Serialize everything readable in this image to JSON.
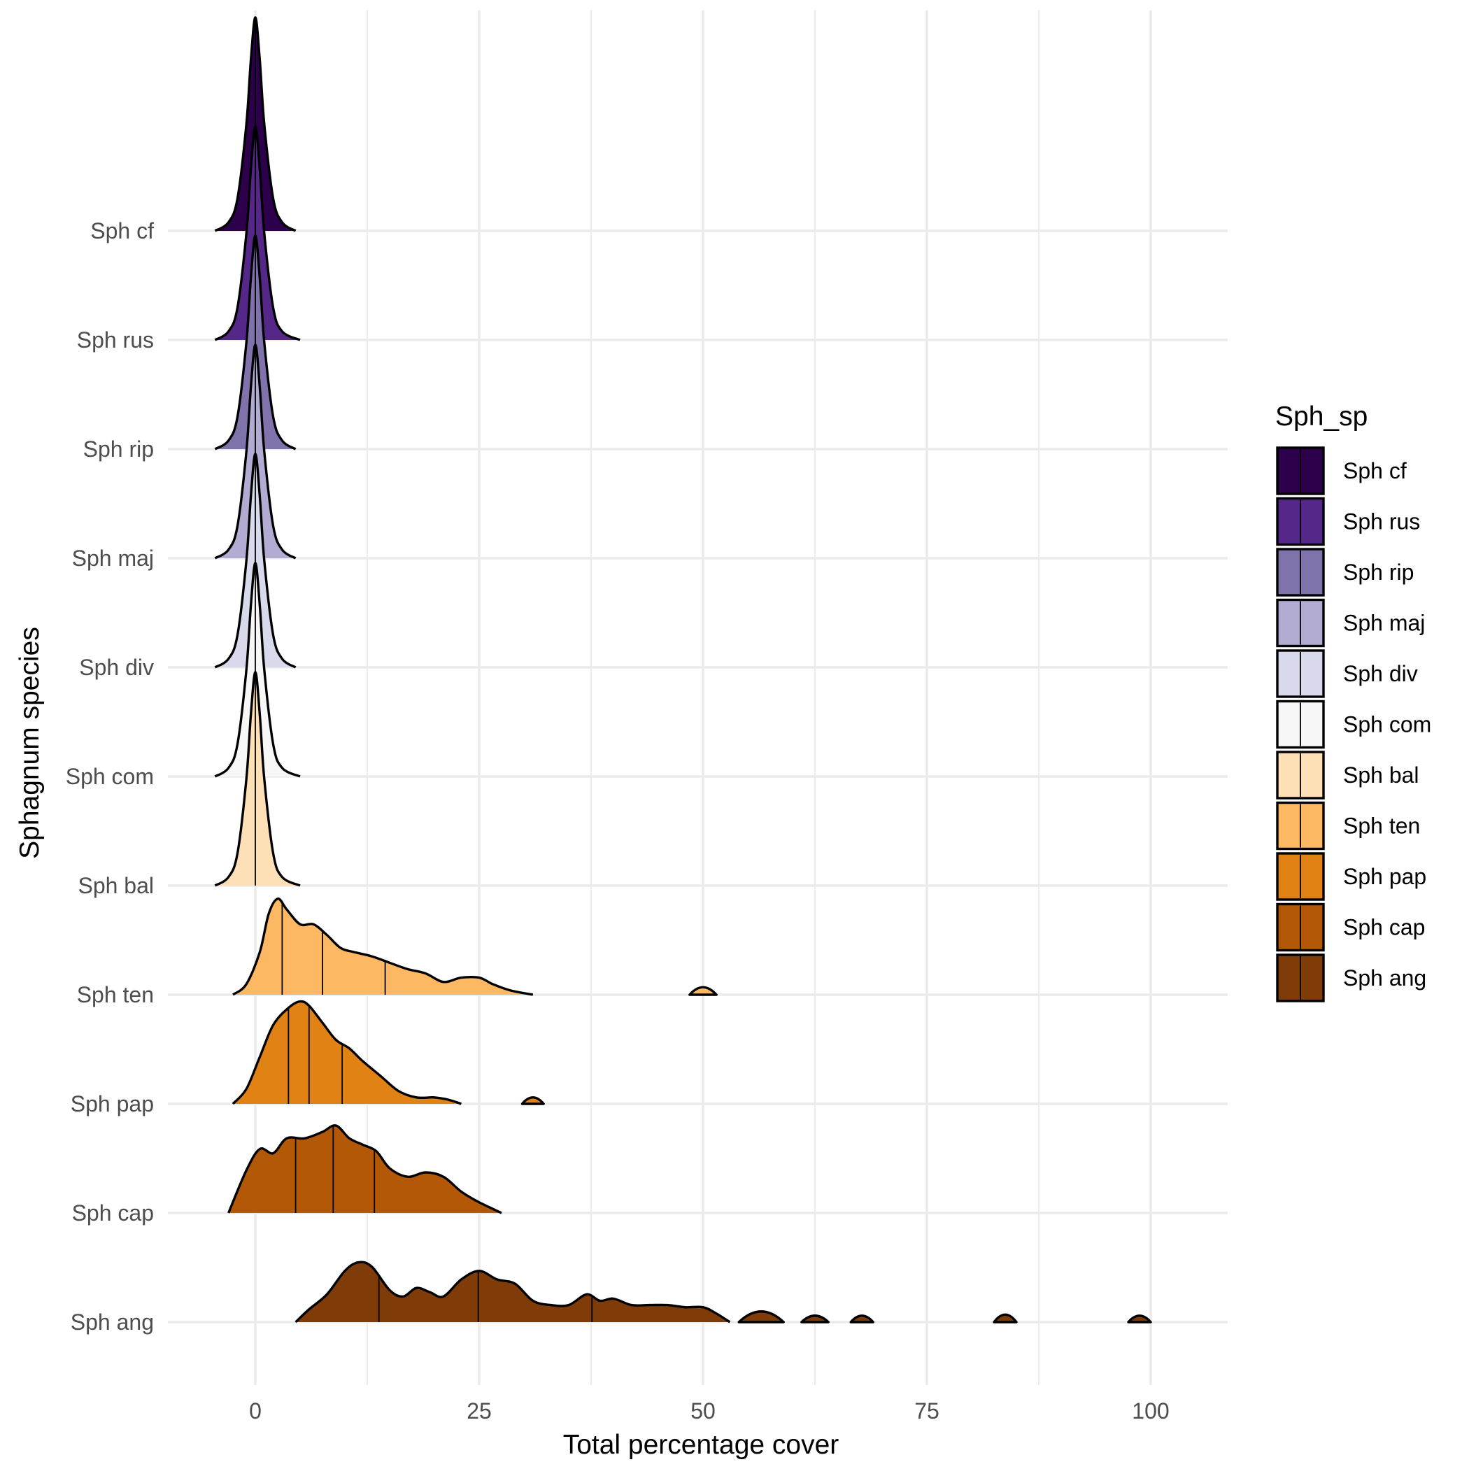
{
  "chart_data": {
    "type": "ridgeline",
    "title": "",
    "xlabel": "Total percentage cover",
    "ylabel": "Sphagnum species",
    "xlim": [
      -9.5,
      109.5
    ],
    "x_ticks": [
      0,
      25,
      50,
      75,
      100
    ],
    "x_minor_ticks": [
      12.5,
      37.5,
      62.5,
      87.5
    ],
    "grid": true,
    "legend": {
      "title": "Sph_sp",
      "position": "right"
    },
    "series": [
      {
        "name": "Sph cf",
        "color": "#2d004b",
        "quantiles": [
          0
        ],
        "density": [
          [
            -4.5,
            0
          ],
          [
            -3,
            0.04
          ],
          [
            -2,
            0.15
          ],
          [
            -1,
            0.5
          ],
          [
            -0.5,
            0.8
          ],
          [
            0,
            1
          ],
          [
            0.5,
            0.8
          ],
          [
            1,
            0.5
          ],
          [
            2,
            0.15
          ],
          [
            3,
            0.04
          ],
          [
            4.5,
            0
          ]
        ]
      },
      {
        "name": "Sph rus",
        "color": "#542788",
        "quantiles": [
          0
        ],
        "density": [
          [
            -4.5,
            0
          ],
          [
            -3,
            0.04
          ],
          [
            -2,
            0.15
          ],
          [
            -1,
            0.5
          ],
          [
            -0.5,
            0.8
          ],
          [
            0,
            1
          ],
          [
            0.5,
            0.8
          ],
          [
            1,
            0.5
          ],
          [
            2,
            0.15
          ],
          [
            3,
            0.04
          ],
          [
            5,
            0
          ]
        ]
      },
      {
        "name": "Sph rip",
        "color": "#8073ac",
        "quantiles": [
          0
        ],
        "density": [
          [
            -4.5,
            0
          ],
          [
            -3,
            0.04
          ],
          [
            -2,
            0.15
          ],
          [
            -1,
            0.5
          ],
          [
            -0.5,
            0.8
          ],
          [
            0,
            1
          ],
          [
            0.5,
            0.8
          ],
          [
            1,
            0.5
          ],
          [
            2,
            0.15
          ],
          [
            3,
            0.04
          ],
          [
            4.5,
            0
          ]
        ]
      },
      {
        "name": "Sph maj",
        "color": "#b2abd2",
        "quantiles": [
          0
        ],
        "density": [
          [
            -4.5,
            0
          ],
          [
            -3,
            0.04
          ],
          [
            -2,
            0.15
          ],
          [
            -1,
            0.5
          ],
          [
            -0.5,
            0.8
          ],
          [
            0,
            1
          ],
          [
            0.5,
            0.8
          ],
          [
            1,
            0.5
          ],
          [
            2,
            0.15
          ],
          [
            3,
            0.04
          ],
          [
            4.5,
            0
          ]
        ]
      },
      {
        "name": "Sph div",
        "color": "#d8daeb",
        "quantiles": [
          0
        ],
        "density": [
          [
            -4.5,
            0
          ],
          [
            -3,
            0.04
          ],
          [
            -2,
            0.15
          ],
          [
            -1,
            0.5
          ],
          [
            -0.5,
            0.8
          ],
          [
            0,
            1
          ],
          [
            0.5,
            0.8
          ],
          [
            1,
            0.5
          ],
          [
            2,
            0.15
          ],
          [
            3,
            0.04
          ],
          [
            4.5,
            0
          ]
        ]
      },
      {
        "name": "Sph com",
        "color": "#f7f7f7",
        "quantiles": [
          0
        ],
        "density": [
          [
            -4.5,
            0
          ],
          [
            -3,
            0.04
          ],
          [
            -2,
            0.15
          ],
          [
            -1,
            0.5
          ],
          [
            -0.5,
            0.8
          ],
          [
            0,
            1
          ],
          [
            0.5,
            0.8
          ],
          [
            1,
            0.5
          ],
          [
            2,
            0.15
          ],
          [
            3,
            0.04
          ],
          [
            5,
            0
          ]
        ]
      },
      {
        "name": "Sph bal",
        "color": "#fee0b6",
        "quantiles": [
          0
        ],
        "density": [
          [
            -4.5,
            0
          ],
          [
            -3,
            0.04
          ],
          [
            -2,
            0.15
          ],
          [
            -1,
            0.5
          ],
          [
            -0.5,
            0.8
          ],
          [
            0,
            1
          ],
          [
            0.5,
            0.8
          ],
          [
            1,
            0.5
          ],
          [
            2,
            0.15
          ],
          [
            3,
            0.04
          ],
          [
            5,
            0
          ]
        ]
      },
      {
        "name": "Sph ten",
        "color": "#fdb863",
        "quantiles": [
          3,
          7.5,
          14.5
        ],
        "density": [
          [
            -2.5,
            0
          ],
          [
            -1,
            0.05
          ],
          [
            0.5,
            0.2
          ],
          [
            1.5,
            0.38
          ],
          [
            2.5,
            0.45
          ],
          [
            3.5,
            0.4
          ],
          [
            5,
            0.33
          ],
          [
            6.5,
            0.33
          ],
          [
            8,
            0.28
          ],
          [
            9.5,
            0.22
          ],
          [
            11,
            0.2
          ],
          [
            13,
            0.18
          ],
          [
            15,
            0.15
          ],
          [
            17,
            0.12
          ],
          [
            19,
            0.1
          ],
          [
            21,
            0.06
          ],
          [
            23,
            0.08
          ],
          [
            25,
            0.08
          ],
          [
            26.5,
            0.05
          ],
          [
            28.5,
            0.02
          ],
          [
            31,
            0
          ]
        ]
      },
      {
        "name": "Sph pap",
        "color": "#e08214",
        "quantiles": [
          3.7,
          6,
          9.7
        ],
        "density": [
          [
            -2.5,
            0
          ],
          [
            -1,
            0.07
          ],
          [
            0.5,
            0.22
          ],
          [
            2,
            0.37
          ],
          [
            3.7,
            0.45
          ],
          [
            5,
            0.48
          ],
          [
            6,
            0.46
          ],
          [
            7.5,
            0.38
          ],
          [
            9,
            0.3
          ],
          [
            10.5,
            0.26
          ],
          [
            12,
            0.2
          ],
          [
            14,
            0.13
          ],
          [
            16,
            0.06
          ],
          [
            18,
            0.03
          ],
          [
            20,
            0.03
          ],
          [
            21.5,
            0.02
          ],
          [
            23,
            0
          ]
        ]
      },
      {
        "name": "Sph cap",
        "color": "#b35806",
        "quantiles": [
          4.5,
          8.7,
          13.3
        ],
        "density": [
          [
            -3,
            0
          ],
          [
            -1,
            0.2
          ],
          [
            0.5,
            0.3
          ],
          [
            2,
            0.28
          ],
          [
            3.5,
            0.35
          ],
          [
            5.5,
            0.35
          ],
          [
            7.5,
            0.38
          ],
          [
            9,
            0.41
          ],
          [
            10.5,
            0.35
          ],
          [
            12,
            0.32
          ],
          [
            13.5,
            0.29
          ],
          [
            15,
            0.21
          ],
          [
            17,
            0.17
          ],
          [
            19,
            0.19
          ],
          [
            21,
            0.17
          ],
          [
            23,
            0.1
          ],
          [
            25,
            0.05
          ],
          [
            27.5,
            0
          ]
        ]
      },
      {
        "name": "Sph ang",
        "color": "#7f3b08",
        "quantiles": [
          13.8,
          24.9,
          37.6
        ],
        "density": [
          [
            4.5,
            0
          ],
          [
            6,
            0.06
          ],
          [
            8,
            0.13
          ],
          [
            10,
            0.24
          ],
          [
            11.5,
            0.28
          ],
          [
            13,
            0.26
          ],
          [
            15,
            0.15
          ],
          [
            16.5,
            0.12
          ],
          [
            18,
            0.16
          ],
          [
            19.5,
            0.14
          ],
          [
            21,
            0.12
          ],
          [
            23,
            0.2
          ],
          [
            25,
            0.24
          ],
          [
            27,
            0.2
          ],
          [
            29,
            0.18
          ],
          [
            31,
            0.1
          ],
          [
            33,
            0.08
          ],
          [
            35,
            0.08
          ],
          [
            37,
            0.13
          ],
          [
            38.5,
            0.1
          ],
          [
            40,
            0.11
          ],
          [
            42,
            0.08
          ],
          [
            44,
            0.08
          ],
          [
            46,
            0.08
          ],
          [
            48,
            0.07
          ],
          [
            50,
            0.07
          ],
          [
            51.5,
            0.04
          ],
          [
            53,
            0
          ]
        ]
      }
    ],
    "islands": [
      {
        "series": "Sph ten",
        "range": [
          48.5,
          51.5
        ],
        "peak": 0.035
      },
      {
        "series": "Sph pap",
        "range": [
          29.8,
          32.2
        ],
        "peak": 0.03
      },
      {
        "series": "Sph ang",
        "range": [
          54,
          59
        ],
        "peak": 0.05
      },
      {
        "series": "Sph ang",
        "range": [
          61,
          64
        ],
        "peak": 0.03
      },
      {
        "series": "Sph ang",
        "range": [
          66.5,
          69
        ],
        "peak": 0.03
      },
      {
        "series": "Sph ang",
        "range": [
          82.5,
          85
        ],
        "peak": 0.035
      },
      {
        "series": "Sph ang",
        "range": [
          97.5,
          100
        ],
        "peak": 0.03
      }
    ]
  }
}
